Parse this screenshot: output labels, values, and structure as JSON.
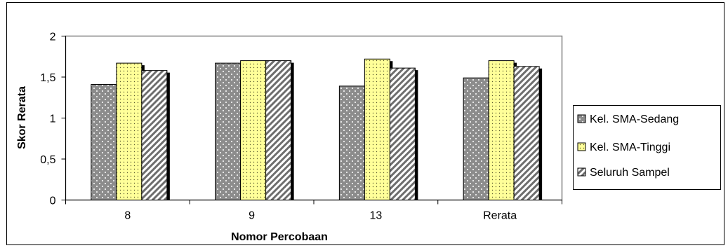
{
  "chart_data": {
    "type": "bar",
    "categories": [
      "8",
      "9",
      "13",
      "Rerata"
    ],
    "series": [
      {
        "name": "Kel. SMA-Sedang",
        "values": [
          1.41,
          1.67,
          1.39,
          1.49
        ],
        "color": "#8c8c8c",
        "pattern": "dots-dark"
      },
      {
        "name": "Kel. SMA-Tinggi",
        "values": [
          1.67,
          1.7,
          1.72,
          1.7
        ],
        "color": "#ffff99",
        "pattern": "dots-light"
      },
      {
        "name": "Seluruh Sampel",
        "values": [
          1.58,
          1.7,
          1.61,
          1.63
        ],
        "color": "#d9d9d9",
        "pattern": "diagonal"
      }
    ],
    "title": "",
    "xlabel": "Nomor Percobaan",
    "ylabel": "Skor Rerata",
    "ylim": [
      0,
      2
    ],
    "yticks": [
      0,
      0.5,
      1,
      1.5,
      2
    ],
    "ytick_labels": [
      "0",
      "0,5",
      "1",
      "1,5",
      "2"
    ],
    "grid": false,
    "legend_position": "right"
  }
}
